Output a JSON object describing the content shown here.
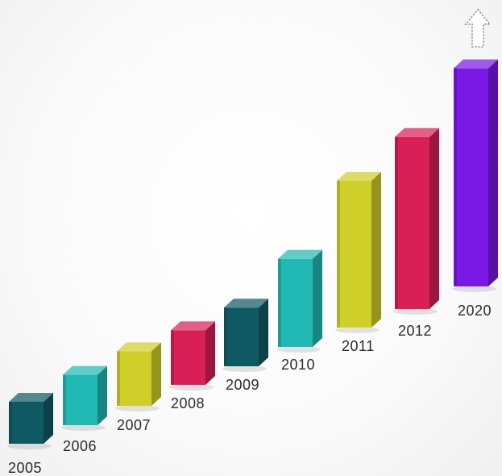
{
  "chart_data": {
    "type": "bar",
    "title": "",
    "xlabel": "",
    "ylabel": "",
    "categories": [
      "2005",
      "2006",
      "2007",
      "2008",
      "2009",
      "2010",
      "2011",
      "2012",
      "2020"
    ],
    "values": [
      1,
      1.2,
      1.3,
      1.3,
      1.4,
      2.1,
      3.5,
      4.1,
      5.2
    ],
    "colors": [
      "#0f5a62",
      "#22b9b4",
      "#cfcf2a",
      "#d91f55",
      "#0f5a62",
      "#22b9b4",
      "#cfcf2a",
      "#d91f55",
      "#7a18e6"
    ],
    "axes_visible": false,
    "grid": false,
    "legend": "none",
    "trend_icon": "up-arrow-icon"
  }
}
